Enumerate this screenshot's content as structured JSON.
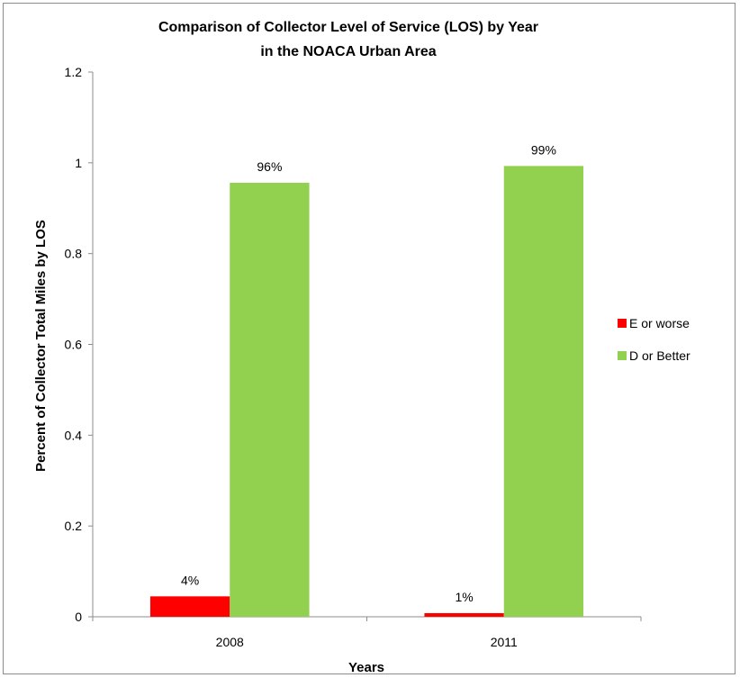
{
  "chart_data": {
    "type": "bar",
    "title_lines": [
      "Comparison of Collector Level of Service (LOS) by Year",
      "in the NOACA Urban Area"
    ],
    "xlabel": "Years",
    "ylabel": "Percent of Collector Total Miles by LOS",
    "categories": [
      "2008",
      "2011"
    ],
    "ylim": [
      0,
      1.2
    ],
    "yticks": [
      "0",
      "0.2",
      "0.4",
      "0.6",
      "0.8",
      "1",
      "1.2"
    ],
    "grid": false,
    "legend_position": "right",
    "series": [
      {
        "name": "E or worse",
        "color": "#ff0000",
        "values": [
          0.045,
          0.008
        ],
        "labels": [
          "4%",
          "1%"
        ]
      },
      {
        "name": "D or Better",
        "color": "#92d050",
        "values": [
          0.956,
          0.993
        ],
        "labels": [
          "96%",
          "99%"
        ]
      }
    ]
  }
}
